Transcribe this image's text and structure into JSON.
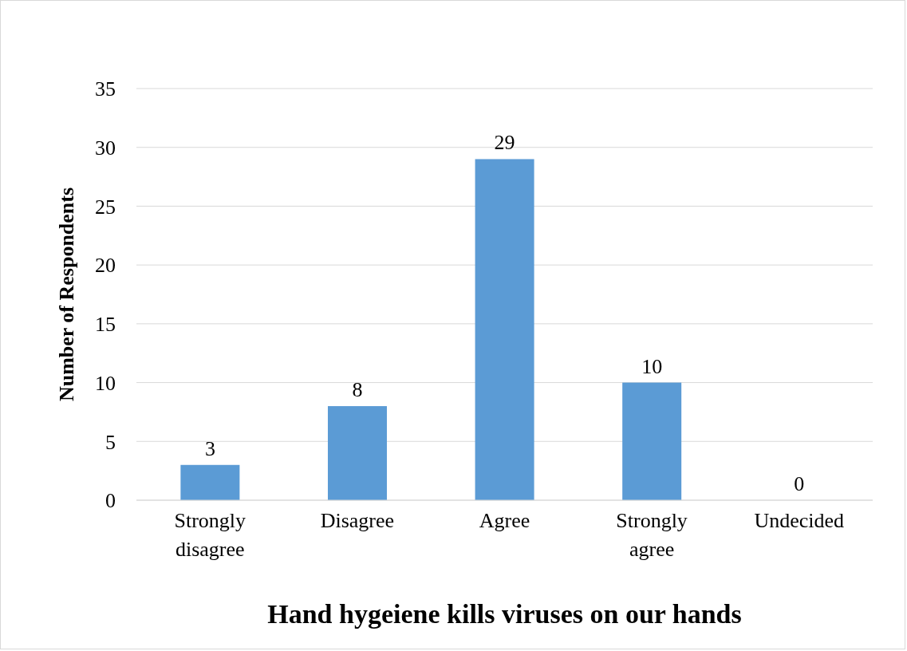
{
  "chart_data": {
    "type": "bar",
    "xlabel": "Hand hygeiene kills viruses on our hands",
    "ylabel": "Number of Respondents",
    "categories": [
      "Strongly disagree",
      "Disagree",
      "Agree",
      "Strongly agree",
      "Undecided"
    ],
    "values": [
      3,
      8,
      29,
      10,
      0
    ],
    "color": "#5b9bd5",
    "ylim": [
      0,
      35
    ],
    "yticks": [
      0,
      5,
      10,
      15,
      20,
      25,
      30,
      35
    ],
    "grid": "y",
    "data_labels": true
  }
}
